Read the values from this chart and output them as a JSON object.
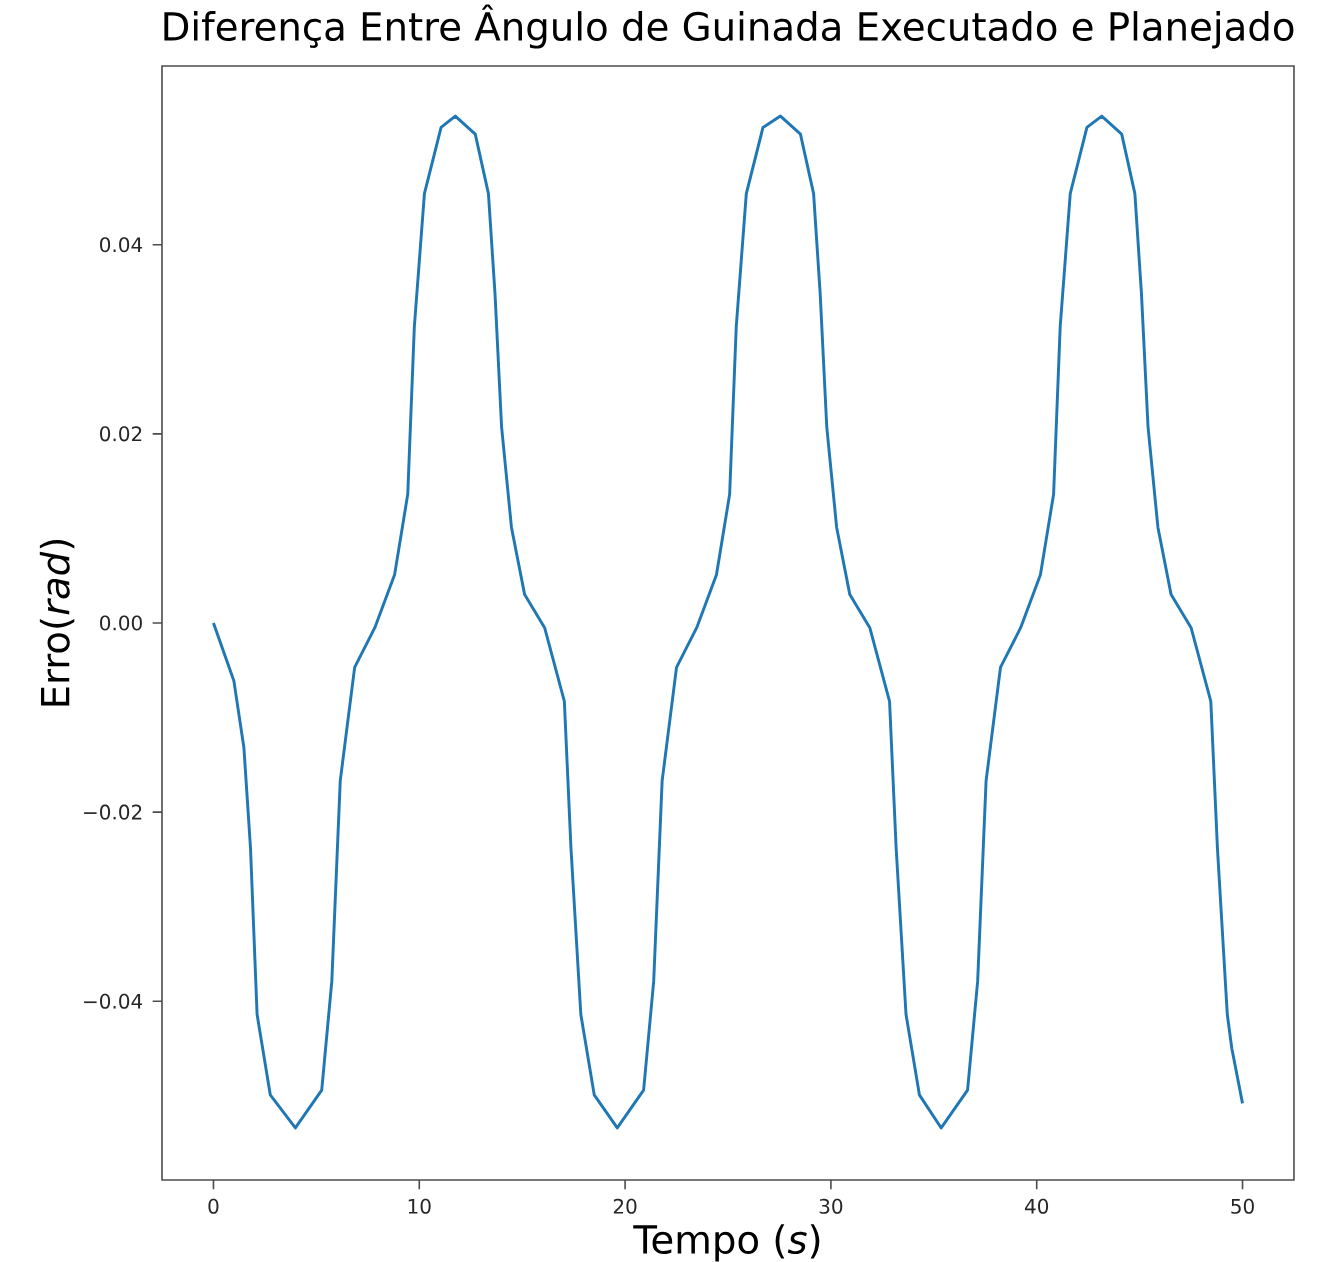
{
  "chart_data": {
    "type": "line",
    "title": "Diferença Entre Ângulo de Guinada Executado e Planejado",
    "xlabel": "Tempo (*s*)",
    "ylabel": "Erro(*rad*)",
    "xlim": [
      -2.5,
      52.5
    ],
    "ylim": [
      -0.0589,
      0.0589
    ],
    "xticks": [
      0,
      10,
      20,
      30,
      40,
      50
    ],
    "yticks": [
      {
        "value": -0.04,
        "label": "−0.04"
      },
      {
        "value": -0.02,
        "label": "−0.02"
      },
      {
        "value": 0,
        "label": "0.00"
      },
      {
        "value": 0.02,
        "label": "0.02"
      },
      {
        "value": 0.04,
        "label": "0.04"
      }
    ],
    "series": [
      {
        "color": "#1f77b4",
        "x": [
          0,
          0.99,
          1.48,
          1.8,
          2.12,
          2.76,
          3.98,
          5.26,
          5.75,
          6.16,
          6.86,
          7.84,
          8.8,
          9.44,
          9.76,
          10.25,
          11.06,
          11.75,
          12.72,
          13.36,
          13.68,
          14.0,
          14.48,
          15.12,
          16.09,
          17.05,
          17.37,
          17.85,
          18.5,
          19.62,
          20.9,
          21.39,
          21.8,
          22.5,
          23.48,
          24.44,
          25.08,
          25.4,
          25.89,
          26.7,
          27.55,
          28.52,
          29.16,
          29.48,
          29.8,
          30.28,
          30.92,
          31.89,
          32.85,
          33.17,
          33.65,
          34.3,
          35.36,
          36.64,
          37.13,
          37.54,
          38.24,
          39.22,
          40.18,
          40.82,
          41.14,
          41.63,
          42.44,
          43.16,
          44.13,
          44.77,
          45.09,
          45.41,
          45.89,
          46.53,
          47.5,
          48.46,
          48.78,
          49.26,
          49.48,
          50
        ],
        "values": [
          0,
          -0.0061,
          -0.0132,
          -0.0238,
          -0.0414,
          -0.0499,
          -0.0534,
          -0.0494,
          -0.0379,
          -0.0167,
          -0.0047,
          -0.0005,
          0.0051,
          0.0136,
          0.0313,
          0.0454,
          0.0524,
          0.0536,
          0.0517,
          0.0454,
          0.0348,
          0.0207,
          0.0101,
          0.003,
          -0.0005,
          -0.0083,
          -0.0238,
          -0.0414,
          -0.0499,
          -0.0534,
          -0.0494,
          -0.0379,
          -0.0167,
          -0.0047,
          -0.0005,
          0.0051,
          0.0136,
          0.0313,
          0.0454,
          0.0524,
          0.0536,
          0.0517,
          0.0454,
          0.0348,
          0.0207,
          0.0101,
          0.003,
          -0.0005,
          -0.0083,
          -0.0238,
          -0.0414,
          -0.0499,
          -0.0534,
          -0.0494,
          -0.0379,
          -0.0167,
          -0.0047,
          -0.0005,
          0.0051,
          0.0136,
          0.0313,
          0.0454,
          0.0524,
          0.0536,
          0.0517,
          0.0454,
          0.0348,
          0.0207,
          0.0101,
          0.003,
          -0.0005,
          -0.0083,
          -0.0238,
          -0.0414,
          -0.045,
          -0.0508
        ]
      }
    ]
  }
}
